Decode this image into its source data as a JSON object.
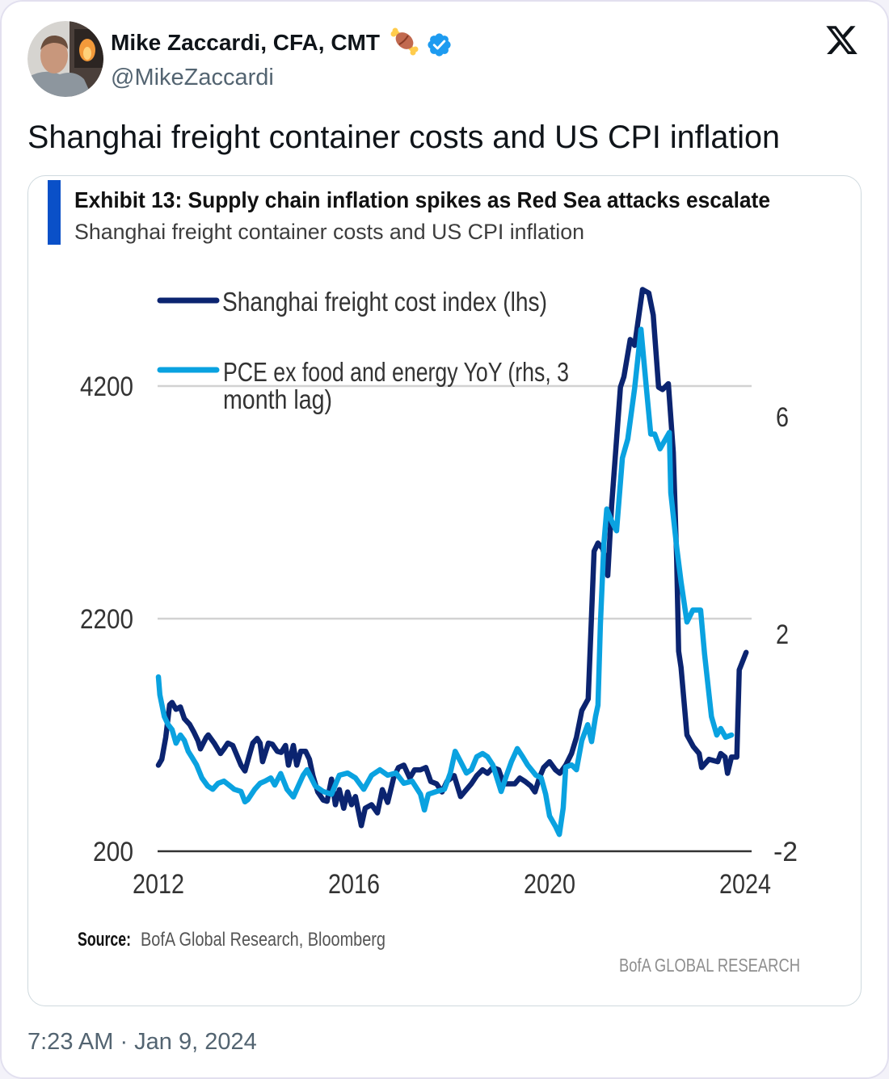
{
  "tweet": {
    "author": {
      "name": "Mike Zaccardi, CFA, CMT",
      "name_emoji": "🍖",
      "handle": "@MikeZaccardi",
      "verified": true
    },
    "text": "Shanghai freight container costs and US CPI inflation",
    "timestamp": "7:23 AM · Jan 9, 2024",
    "icons": {
      "platform_logo": "x-logo-icon",
      "verified": "verified-badge-icon",
      "emoji": "meat-on-bone-emoji-icon"
    },
    "colors": {
      "text": "#0f1419",
      "secondary_text": "#536471",
      "verified_badge": "#1d9bf0",
      "media_border": "#cfd9de"
    }
  },
  "chart_data": {
    "type": "line",
    "title": "Exhibit 13: Supply chain inflation spikes as Red Sea attacks escalate",
    "subtitle": "Shanghai freight container costs and US CPI inflation",
    "accent_color": "#0a50c8",
    "xlabel": "",
    "ylabel": "",
    "grid": true,
    "legend_position": "top-left",
    "x": {
      "ticks": [
        2012,
        2016,
        2020,
        2024
      ],
      "range": [
        2012,
        2024
      ]
    },
    "y_left": {
      "ticks": [
        200,
        2200,
        4200
      ],
      "gridlines": [
        2200,
        4200
      ],
      "range": [
        200,
        5050
      ]
    },
    "y_right": {
      "ticks": [
        -2,
        2,
        6
      ],
      "range": [
        -2,
        8.4
      ]
    },
    "legend": [
      {
        "series": 0,
        "lines": [
          "Shanghai freight cost index (lhs)"
        ]
      },
      {
        "series": 1,
        "lines": [
          "PCE ex food and energy YoY (rhs, 3",
          "month lag)"
        ]
      }
    ],
    "series": [
      {
        "id": "shanghai-freight",
        "name": "Shanghai freight cost index (lhs)",
        "axis": "left",
        "color": "#0b2470",
        "points": [
          [
            2012.0,
            940
          ],
          [
            2012.07,
            990
          ],
          [
            2012.15,
            1180
          ],
          [
            2012.23,
            1460
          ],
          [
            2012.28,
            1480
          ],
          [
            2012.36,
            1420
          ],
          [
            2012.45,
            1440
          ],
          [
            2012.53,
            1340
          ],
          [
            2012.64,
            1290
          ],
          [
            2012.73,
            1220
          ],
          [
            2012.81,
            1150
          ],
          [
            2012.86,
            1080
          ],
          [
            2012.98,
            1180
          ],
          [
            2013.02,
            1200
          ],
          [
            2013.14,
            1130
          ],
          [
            2013.27,
            1040
          ],
          [
            2013.34,
            1080
          ],
          [
            2013.42,
            1130
          ],
          [
            2013.52,
            1110
          ],
          [
            2013.59,
            1040
          ],
          [
            2013.69,
            940
          ],
          [
            2013.77,
            890
          ],
          [
            2013.85,
            1010
          ],
          [
            2013.93,
            1130
          ],
          [
            2014.02,
            1170
          ],
          [
            2014.08,
            1130
          ],
          [
            2014.13,
            970
          ],
          [
            2014.25,
            1130
          ],
          [
            2014.33,
            1120
          ],
          [
            2014.43,
            1060
          ],
          [
            2014.51,
            1050
          ],
          [
            2014.6,
            1110
          ],
          [
            2014.66,
            940
          ],
          [
            2014.76,
            1110
          ],
          [
            2014.83,
            940
          ],
          [
            2014.91,
            1060
          ],
          [
            2015.01,
            1060
          ],
          [
            2015.09,
            990
          ],
          [
            2015.16,
            850
          ],
          [
            2015.26,
            710
          ],
          [
            2015.37,
            640
          ],
          [
            2015.45,
            630
          ],
          [
            2015.54,
            820
          ],
          [
            2015.62,
            600
          ],
          [
            2015.7,
            730
          ],
          [
            2015.79,
            570
          ],
          [
            2015.87,
            710
          ],
          [
            2015.95,
            600
          ],
          [
            2016.03,
            670
          ],
          [
            2016.15,
            420
          ],
          [
            2016.23,
            570
          ],
          [
            2016.36,
            600
          ],
          [
            2016.48,
            530
          ],
          [
            2016.58,
            730
          ],
          [
            2016.69,
            620
          ],
          [
            2016.81,
            830
          ],
          [
            2016.91,
            920
          ],
          [
            2017.02,
            940
          ],
          [
            2017.14,
            830
          ],
          [
            2017.24,
            900
          ],
          [
            2017.36,
            900
          ],
          [
            2017.47,
            920
          ],
          [
            2017.57,
            800
          ],
          [
            2017.69,
            780
          ],
          [
            2017.8,
            710
          ],
          [
            2017.9,
            800
          ],
          [
            2018.05,
            850
          ],
          [
            2018.18,
            670
          ],
          [
            2018.3,
            730
          ],
          [
            2018.4,
            780
          ],
          [
            2018.51,
            850
          ],
          [
            2018.63,
            900
          ],
          [
            2018.73,
            870
          ],
          [
            2018.84,
            920
          ],
          [
            2018.96,
            900
          ],
          [
            2019.06,
            780
          ],
          [
            2019.17,
            780
          ],
          [
            2019.29,
            780
          ],
          [
            2019.39,
            830
          ],
          [
            2019.5,
            800
          ],
          [
            2019.62,
            760
          ],
          [
            2019.7,
            710
          ],
          [
            2019.79,
            830
          ],
          [
            2019.88,
            920
          ],
          [
            2020.0,
            970
          ],
          [
            2020.12,
            900
          ],
          [
            2020.21,
            870
          ],
          [
            2020.33,
            940
          ],
          [
            2020.45,
            1040
          ],
          [
            2020.55,
            1180
          ],
          [
            2020.66,
            1410
          ],
          [
            2020.79,
            1510
          ],
          [
            2020.91,
            2780
          ],
          [
            2020.99,
            2850
          ],
          [
            2021.09,
            2800
          ],
          [
            2021.19,
            2570
          ],
          [
            2021.27,
            3170
          ],
          [
            2021.45,
            4190
          ],
          [
            2021.52,
            4280
          ],
          [
            2021.65,
            4600
          ],
          [
            2021.74,
            4550
          ],
          [
            2021.9,
            5030
          ],
          [
            2022.03,
            5000
          ],
          [
            2022.12,
            4810
          ],
          [
            2022.23,
            4190
          ],
          [
            2022.31,
            4170
          ],
          [
            2022.43,
            4220
          ],
          [
            2022.53,
            3630
          ],
          [
            2022.6,
            2710
          ],
          [
            2022.64,
            1920
          ],
          [
            2022.69,
            1780
          ],
          [
            2022.81,
            1200
          ],
          [
            2022.94,
            1100
          ],
          [
            2023.06,
            1040
          ],
          [
            2023.11,
            920
          ],
          [
            2023.26,
            990
          ],
          [
            2023.44,
            970
          ],
          [
            2023.5,
            1040
          ],
          [
            2023.59,
            1010
          ],
          [
            2023.64,
            870
          ],
          [
            2023.72,
            1010
          ],
          [
            2023.83,
            1010
          ],
          [
            2023.88,
            1760
          ],
          [
            2024.02,
            1910
          ]
        ]
      },
      {
        "id": "pce-core-yoy",
        "name": "PCE ex food and energy YoY (rhs, 3 month lag)",
        "axis": "right",
        "color": "#0aa2e0",
        "points": [
          [
            2012.0,
            1.21
          ],
          [
            2012.03,
            0.88
          ],
          [
            2012.12,
            0.48
          ],
          [
            2012.2,
            0.33
          ],
          [
            2012.28,
            0.24
          ],
          [
            2012.36,
            -0.01
          ],
          [
            2012.45,
            0.14
          ],
          [
            2012.53,
            0.04
          ],
          [
            2012.61,
            -0.16
          ],
          [
            2012.68,
            -0.26
          ],
          [
            2012.78,
            -0.41
          ],
          [
            2012.89,
            -0.65
          ],
          [
            2013.01,
            -0.8
          ],
          [
            2013.11,
            -0.86
          ],
          [
            2013.22,
            -0.75
          ],
          [
            2013.34,
            -0.71
          ],
          [
            2013.47,
            -0.8
          ],
          [
            2013.55,
            -0.86
          ],
          [
            2013.69,
            -0.9
          ],
          [
            2013.77,
            -1.09
          ],
          [
            2013.83,
            -1.05
          ],
          [
            2013.97,
            -0.86
          ],
          [
            2014.08,
            -0.75
          ],
          [
            2014.18,
            -0.71
          ],
          [
            2014.3,
            -0.65
          ],
          [
            2014.38,
            -0.78
          ],
          [
            2014.5,
            -0.57
          ],
          [
            2014.63,
            -0.86
          ],
          [
            2014.76,
            -1.0
          ],
          [
            2014.83,
            -0.86
          ],
          [
            2014.96,
            -0.6
          ],
          [
            2015.04,
            -0.5
          ],
          [
            2015.21,
            -0.8
          ],
          [
            2015.37,
            -0.9
          ],
          [
            2015.54,
            -0.95
          ],
          [
            2015.7,
            -0.6
          ],
          [
            2015.87,
            -0.56
          ],
          [
            2016.03,
            -0.65
          ],
          [
            2016.2,
            -0.86
          ],
          [
            2016.36,
            -0.6
          ],
          [
            2016.53,
            -0.5
          ],
          [
            2016.69,
            -0.6
          ],
          [
            2016.86,
            -0.56
          ],
          [
            2017.02,
            -0.75
          ],
          [
            2017.19,
            -0.71
          ],
          [
            2017.36,
            -0.95
          ],
          [
            2017.44,
            -1.24
          ],
          [
            2017.52,
            -0.95
          ],
          [
            2017.69,
            -0.9
          ],
          [
            2017.85,
            -0.86
          ],
          [
            2017.97,
            -0.56
          ],
          [
            2018.07,
            -0.16
          ],
          [
            2018.18,
            -0.35
          ],
          [
            2018.3,
            -0.56
          ],
          [
            2018.4,
            -0.5
          ],
          [
            2018.51,
            -0.26
          ],
          [
            2018.63,
            -0.2
          ],
          [
            2018.73,
            -0.26
          ],
          [
            2018.84,
            -0.41
          ],
          [
            2019.01,
            -0.9
          ],
          [
            2019.12,
            -0.6
          ],
          [
            2019.22,
            -0.35
          ],
          [
            2019.34,
            -0.11
          ],
          [
            2019.45,
            -0.26
          ],
          [
            2019.55,
            -0.41
          ],
          [
            2019.72,
            -0.6
          ],
          [
            2019.83,
            -0.65
          ],
          [
            2019.92,
            -0.95
          ],
          [
            2020.0,
            -1.35
          ],
          [
            2020.12,
            -1.54
          ],
          [
            2020.2,
            -1.69
          ],
          [
            2020.28,
            -1.2
          ],
          [
            2020.33,
            -0.45
          ],
          [
            2020.45,
            -0.41
          ],
          [
            2020.55,
            -0.5
          ],
          [
            2020.66,
            0.04
          ],
          [
            2020.78,
            0.33
          ],
          [
            2020.86,
            0.02
          ],
          [
            2020.94,
            0.48
          ],
          [
            2020.99,
            0.69
          ],
          [
            2021.04,
            2.18
          ],
          [
            2021.11,
            3.66
          ],
          [
            2021.17,
            4.3
          ],
          [
            2021.27,
            4.08
          ],
          [
            2021.37,
            3.9
          ],
          [
            2021.49,
            5.24
          ],
          [
            2021.6,
            5.59
          ],
          [
            2021.74,
            6.53
          ],
          [
            2021.87,
            7.61
          ],
          [
            2021.98,
            6.53
          ],
          [
            2022.07,
            5.68
          ],
          [
            2022.15,
            5.68
          ],
          [
            2022.26,
            5.41
          ],
          [
            2022.45,
            5.71
          ],
          [
            2022.48,
            4.6
          ],
          [
            2022.6,
            3.6
          ],
          [
            2022.69,
            2.96
          ],
          [
            2022.81,
            2.22
          ],
          [
            2022.93,
            2.44
          ],
          [
            2023.09,
            2.44
          ],
          [
            2023.17,
            1.63
          ],
          [
            2023.31,
            0.48
          ],
          [
            2023.42,
            0.14
          ],
          [
            2023.5,
            0.26
          ],
          [
            2023.6,
            0.1
          ],
          [
            2023.72,
            0.14
          ]
        ]
      }
    ],
    "source_label": "Source:",
    "source": "BofA Global Research, Bloomberg",
    "watermark": "BofA GLOBAL RESEARCH"
  }
}
